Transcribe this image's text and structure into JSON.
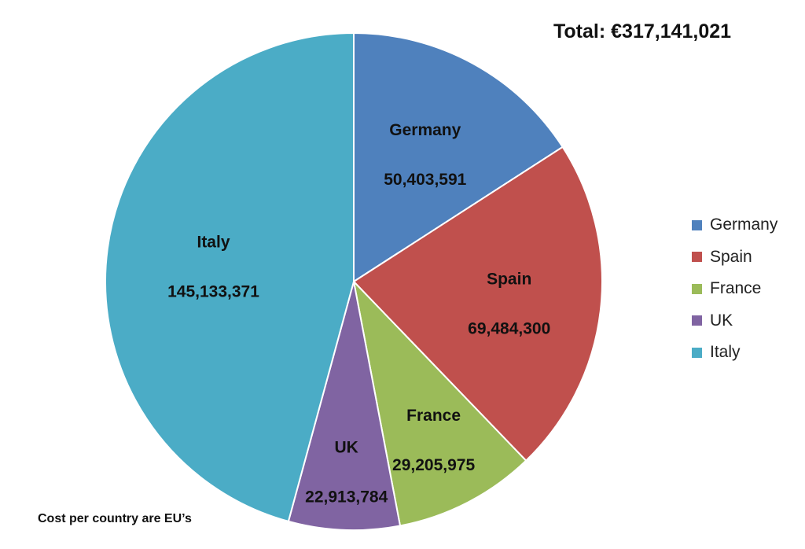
{
  "chart_data": {
    "type": "pie",
    "title": "Total: €317,141,021",
    "note": "Cost per country are EU’s",
    "start": "12 o'clock",
    "direction": "clockwise",
    "legend_position": "right",
    "slices": [
      {
        "name": "Germany",
        "value": 50403591,
        "value_label": "50,403,591",
        "color": "#4F81BD"
      },
      {
        "name": "Spain",
        "value": 69484300,
        "value_label": "69,484,300",
        "color": "#C0504D"
      },
      {
        "name": "France",
        "value": 29205975,
        "value_label": "29,205,975",
        "color": "#9BBB59"
      },
      {
        "name": "UK",
        "value": 22913784,
        "value_label": "22,913,784",
        "color": "#8064A2"
      },
      {
        "name": "Italy",
        "value": 145133371,
        "value_label": "145,133,371",
        "color": "#4BACC6"
      }
    ]
  }
}
